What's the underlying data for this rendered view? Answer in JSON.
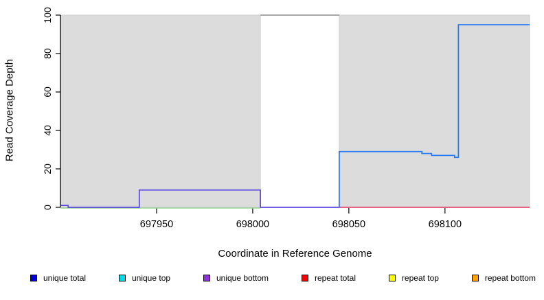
{
  "figure": {
    "y_axis_title": "Read Coverage Depth",
    "x_axis_title": "Coordinate in Reference Genome"
  },
  "chart_data": {
    "type": "line",
    "title": "",
    "xlabel": "Coordinate in Reference Genome",
    "ylabel": "Read Coverage Depth",
    "xlim": [
      697900,
      698144
    ],
    "ylim": [
      0,
      100
    ],
    "xticks": [
      697950,
      698000,
      698050,
      698100
    ],
    "yticks": [
      0,
      20,
      40,
      60,
      80,
      100
    ],
    "grid": false,
    "legend_position": "bottom",
    "background_regions": [
      {
        "name": "shaded-region-left",
        "x0": 697900,
        "x1": 698004,
        "color": "#dcdcdc",
        "border": "#c6c6c6"
      },
      {
        "name": "shaded-region-right",
        "x0": 698045,
        "x1": 698144,
        "color": "#dcdcdc",
        "border": "#c6c6c6"
      }
    ],
    "series": [
      {
        "name": "zero-baseline-green",
        "color": "#8fd48f",
        "width": 1.4,
        "yoffset": 1,
        "points": [
          [
            697900,
            0
          ],
          [
            698004,
            0
          ]
        ]
      },
      {
        "name": "unique-bottom",
        "color": "#5b48e0",
        "width": 1.7,
        "points": [
          [
            697900,
            1
          ],
          [
            697904,
            1
          ],
          [
            697904,
            0
          ],
          [
            697941,
            0
          ],
          [
            697941,
            9
          ],
          [
            698004,
            9
          ],
          [
            698004,
            0
          ],
          [
            698045,
            0
          ]
        ]
      },
      {
        "name": "clipped-coverage-top",
        "color": "#8a8a8a",
        "width": 1.6,
        "points": [
          [
            698004,
            100
          ],
          [
            698045,
            100
          ]
        ]
      },
      {
        "name": "repeat-total",
        "color": "#e0305a",
        "width": 1.4,
        "points": [
          [
            698045,
            0
          ],
          [
            698144,
            0
          ]
        ]
      },
      {
        "name": "unique-total",
        "color": "#2b7bf0",
        "width": 1.8,
        "points": [
          [
            698045,
            0
          ],
          [
            698045,
            29
          ],
          [
            698088,
            29
          ],
          [
            698088,
            28
          ],
          [
            698093,
            28
          ],
          [
            698093,
            27
          ],
          [
            698105,
            27
          ],
          [
            698105,
            26
          ],
          [
            698107,
            26
          ],
          [
            698107,
            95
          ],
          [
            698144,
            95
          ]
        ]
      }
    ]
  },
  "legend": {
    "items": [
      {
        "label": "unique total",
        "color": "#0000d8"
      },
      {
        "label": "unique top",
        "color": "#00dce8"
      },
      {
        "label": "unique bottom",
        "color": "#9232d8"
      },
      {
        "label": "repeat total",
        "color": "#ff0000"
      },
      {
        "label": "repeat top",
        "color": "#ffff00"
      },
      {
        "label": "repeat bottom",
        "color": "#ffa500"
      }
    ]
  }
}
